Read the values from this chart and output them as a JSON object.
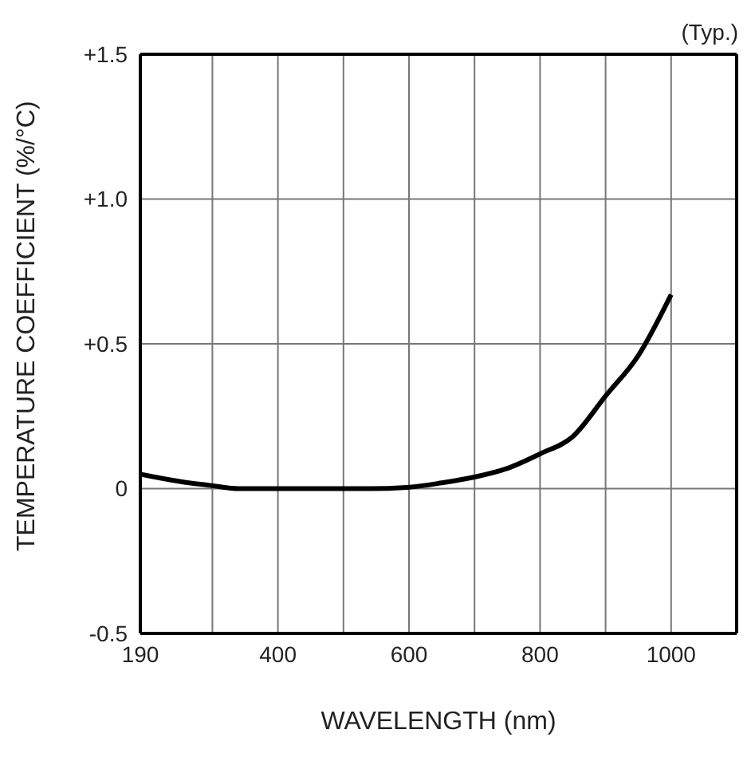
{
  "chart_data": {
    "type": "line",
    "xlabel": "WAVELENGTH (nm)",
    "ylabel": "TEMPERATURE COEFFICIENT (%/°C)",
    "annotations": [
      "(Typ.)"
    ],
    "x": [
      190,
      250,
      300,
      340,
      400,
      500,
      540,
      600,
      650,
      700,
      750,
      800,
      850,
      900,
      950,
      1000
    ],
    "series": [
      {
        "color": "#000000",
        "values": [
          0.05,
          0.025,
          0.01,
          0.0,
          0.0,
          0.0,
          0.0,
          0.005,
          0.02,
          0.04,
          0.07,
          0.12,
          0.18,
          0.32,
          0.46,
          0.67
        ]
      }
    ],
    "xlim": [
      190,
      1100
    ],
    "xticks": [
      190,
      {
        "value": 300,
        "label": null
      },
      400,
      {
        "value": 500,
        "label": null
      },
      600,
      {
        "value": 700,
        "label": null
      },
      800,
      {
        "value": 900,
        "label": null
      },
      1000
    ],
    "ylim": [
      -0.5,
      1.5
    ],
    "yticks": [
      -0.5,
      0,
      {
        "value": 0.5,
        "label": "+0.5"
      },
      {
        "value": 1,
        "label": "+1.0"
      },
      {
        "value": 1.5,
        "label": "+1.5"
      }
    ],
    "grid": true,
    "legend": false,
    "marker": "none",
    "line_style": "solid"
  }
}
